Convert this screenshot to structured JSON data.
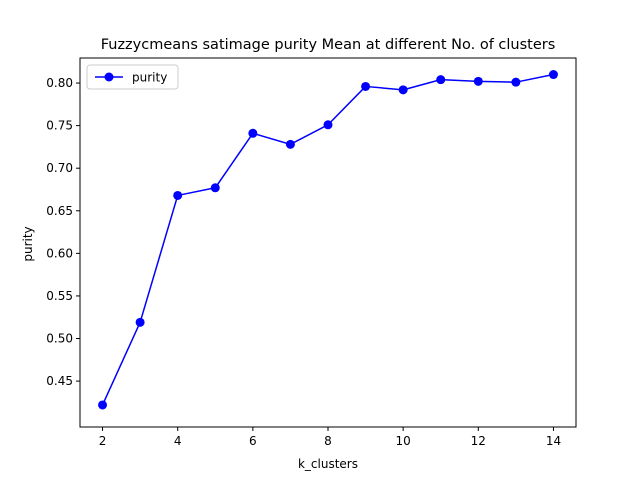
{
  "chart_data": {
    "type": "line",
    "title": "Fuzzycmeans satimage purity Mean at different No. of clusters",
    "xlabel": "k_clusters",
    "ylabel": "purity",
    "x": [
      2,
      3,
      4,
      5,
      6,
      7,
      8,
      9,
      10,
      11,
      12,
      13,
      14
    ],
    "series": [
      {
        "name": "purity",
        "color": "#0000ff",
        "marker": "circle",
        "values": [
          0.422,
          0.519,
          0.668,
          0.677,
          0.741,
          0.728,
          0.751,
          0.796,
          0.792,
          0.804,
          0.802,
          0.801,
          0.81
        ]
      }
    ],
    "xlim": [
      1.4,
      14.6
    ],
    "ylim": [
      0.3961,
      0.8294
    ],
    "xticks": [
      2,
      4,
      6,
      8,
      10,
      12,
      14
    ],
    "yticks": [
      0.45,
      0.5,
      0.55,
      0.6,
      0.65,
      0.7,
      0.75,
      0.8
    ],
    "xtick_labels": [
      "2",
      "4",
      "6",
      "8",
      "10",
      "12",
      "14"
    ],
    "ytick_labels": [
      "0.45",
      "0.50",
      "0.55",
      "0.60",
      "0.65",
      "0.70",
      "0.75",
      "0.80"
    ],
    "grid": false,
    "legend_position": "upper-left"
  }
}
